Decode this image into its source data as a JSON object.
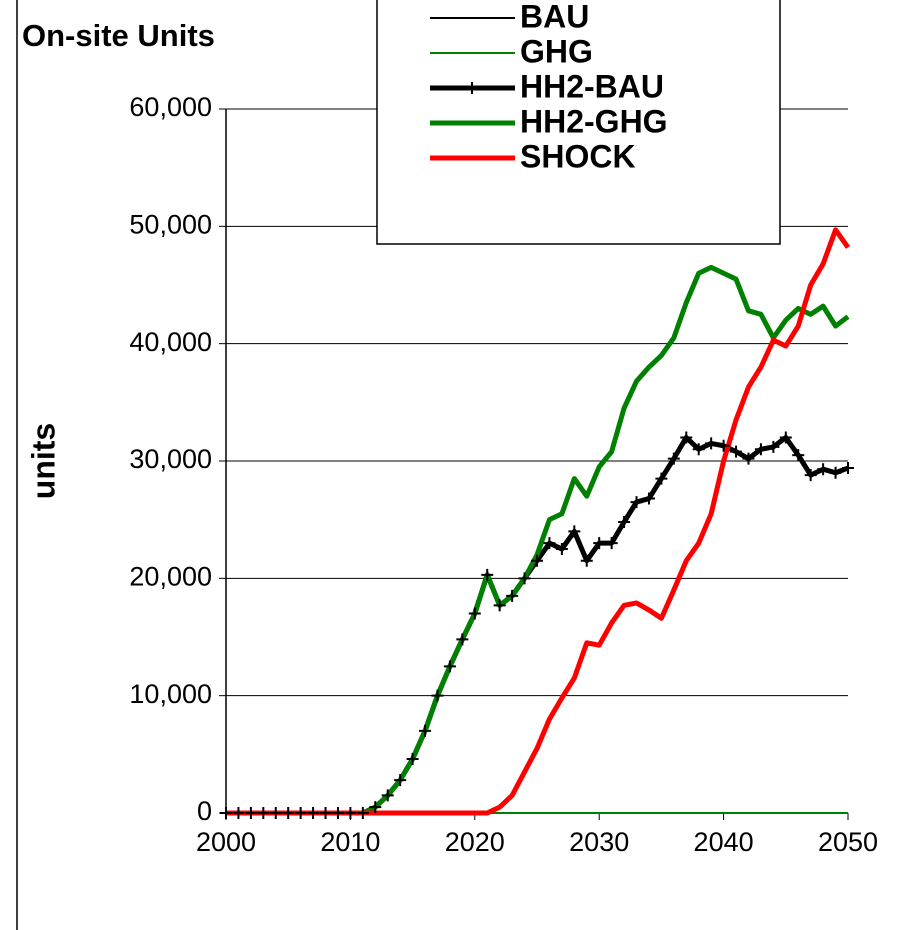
{
  "chart_data": {
    "type": "line",
    "title": "On-site Units",
    "y_label": "units",
    "x": [
      2000,
      2001,
      2002,
      2003,
      2004,
      2005,
      2006,
      2007,
      2008,
      2009,
      2010,
      2011,
      2012,
      2013,
      2014,
      2015,
      2016,
      2017,
      2018,
      2019,
      2020,
      2021,
      2022,
      2023,
      2024,
      2025,
      2026,
      2027,
      2028,
      2029,
      2030,
      2031,
      2032,
      2033,
      2034,
      2035,
      2036,
      2037,
      2038,
      2039,
      2040,
      2041,
      2042,
      2043,
      2044,
      2045,
      2046,
      2047,
      2048,
      2049,
      2050
    ],
    "series": [
      {
        "name": "BAU",
        "color": "#000000",
        "line_width": 2,
        "values": [
          0,
          0,
          0,
          0,
          0,
          0,
          0,
          0,
          0,
          0,
          0,
          0,
          0,
          0,
          0,
          0,
          0,
          0,
          0,
          0,
          0,
          0,
          0,
          0,
          0,
          0,
          0,
          0,
          0,
          0,
          0,
          0,
          0,
          0,
          0,
          0,
          0,
          0,
          0,
          0,
          0,
          0,
          0,
          0,
          0,
          0,
          0,
          0,
          0,
          0,
          0
        ]
      },
      {
        "name": "GHG",
        "color": "#008000",
        "line_width": 2,
        "values": [
          0,
          0,
          0,
          0,
          0,
          0,
          0,
          0,
          0,
          0,
          0,
          0,
          0,
          0,
          0,
          0,
          0,
          0,
          0,
          0,
          0,
          0,
          0,
          0,
          0,
          0,
          0,
          0,
          0,
          0,
          0,
          0,
          0,
          0,
          0,
          0,
          0,
          0,
          0,
          0,
          0,
          0,
          0,
          0,
          0,
          0,
          0,
          0,
          0,
          0,
          0
        ]
      },
      {
        "name": "HH2-BAU",
        "color": "#000000",
        "line_width": 5,
        "marker": "+",
        "values": [
          0,
          0,
          0,
          0,
          0,
          0,
          0,
          0,
          0,
          0,
          0,
          0,
          500,
          1500,
          2800,
          4600,
          7000,
          10000,
          12500,
          14800,
          17000,
          20300,
          17700,
          18500,
          20000,
          21500,
          23000,
          22500,
          24000,
          21500,
          23000,
          23000,
          24800,
          26500,
          26800,
          28500,
          30200,
          32000,
          31000,
          31500,
          31300,
          30800,
          30200,
          31000,
          31200,
          32000,
          30500,
          28800,
          29300,
          29000,
          29400
        ]
      },
      {
        "name": "HH2-GHG",
        "color": "#008000",
        "line_width": 5,
        "values": [
          0,
          0,
          0,
          0,
          0,
          0,
          0,
          0,
          0,
          0,
          0,
          0,
          500,
          1500,
          2800,
          4600,
          7000,
          10000,
          12500,
          14800,
          17000,
          20300,
          17700,
          18500,
          20000,
          22000,
          25000,
          25500,
          28500,
          27000,
          29500,
          30800,
          34500,
          36800,
          38000,
          39000,
          40500,
          43500,
          46000,
          46500,
          46000,
          45500,
          42800,
          42500,
          40500,
          42000,
          43000,
          42500,
          43200,
          41500,
          42300
        ]
      },
      {
        "name": "SHOCK",
        "color": "#ff0000",
        "line_width": 5,
        "values": [
          0,
          0,
          0,
          0,
          0,
          0,
          0,
          0,
          0,
          0,
          0,
          0,
          0,
          0,
          0,
          0,
          0,
          0,
          0,
          0,
          0,
          0,
          500,
          1500,
          3500,
          5500,
          8000,
          9800,
          11500,
          14500,
          14300,
          16200,
          17700,
          17900,
          17300,
          16600,
          19000,
          21500,
          23000,
          25500,
          30000,
          33500,
          36300,
          38000,
          40300,
          39800,
          41500,
          45000,
          46800,
          49700,
          48200
        ]
      }
    ],
    "xlim": [
      2000,
      2050
    ],
    "xticks": [
      2000,
      2010,
      2020,
      2030,
      2040,
      2050
    ],
    "ylim": [
      0,
      60000
    ],
    "yticks": [
      0,
      {
        "value": 10000,
        "label": "10,000"
      },
      {
        "value": 20000,
        "label": "20,000"
      },
      {
        "value": 30000,
        "label": "30,000"
      },
      {
        "value": 40000,
        "label": "40,000"
      },
      {
        "value": 50000,
        "label": "50,000"
      },
      {
        "value": 60000,
        "label": "60,000"
      }
    ],
    "grid": true
  }
}
